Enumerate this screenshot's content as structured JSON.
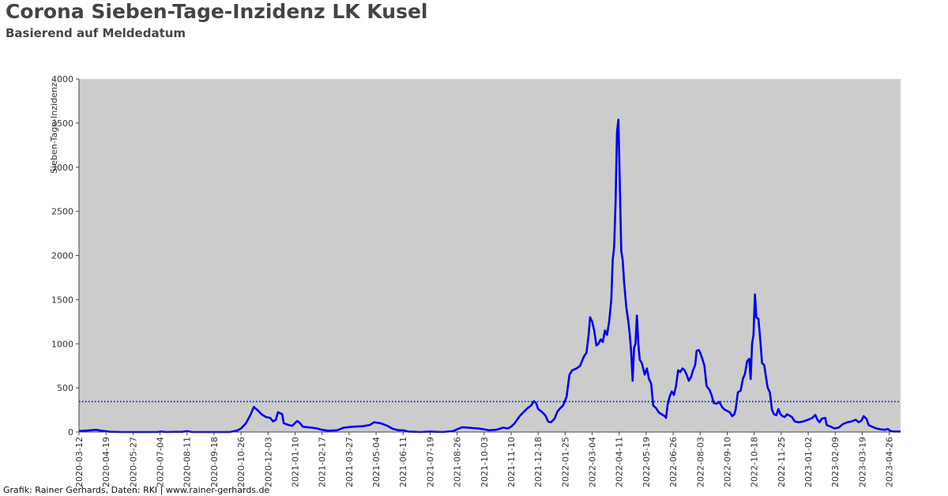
{
  "title": "Corona Sieben-Tage-Inzidenz LK Kusel",
  "subtitle": "Basierend auf Meldedatum",
  "footer": "Grafik: Rainer Gerhards, Daten: RKI | www.rainer-gerhards.de",
  "colors": {
    "plot_background": "#cccccc",
    "series_line": "#0000ee",
    "reference_line": "#0000cc",
    "text": "#444444"
  },
  "chart_data": {
    "type": "line",
    "title": "Corona Sieben-Tage-Inzidenz LK Kusel",
    "subtitle": "Basierend auf Meldedatum",
    "xlabel": "",
    "ylabel": "Sieben-Tage-Inzidenz",
    "ylim": [
      0,
      4000
    ],
    "xlim": [
      "2020-03-12",
      "2023-05-12"
    ],
    "grid": false,
    "y_ticks": [
      0,
      500,
      1000,
      1500,
      2000,
      2500,
      3000,
      3500,
      4000
    ],
    "x_ticks": [
      "2020-03-12",
      "2020-04-19",
      "2020-05-27",
      "2020-07-04",
      "2020-08-11",
      "2020-09-18",
      "2020-10-26",
      "2020-12-03",
      "2021-01-10",
      "2021-02-17",
      "2021-03-27",
      "2021-05-04",
      "2021-06-11",
      "2021-07-19",
      "2021-08-26",
      "2021-10-03",
      "2021-11-10",
      "2021-12-18",
      "2022-01-25",
      "2022-03-04",
      "2022-04-11",
      "2022-05-19",
      "2022-06-26",
      "2022-08-03",
      "2022-09-10",
      "2022-10-18",
      "2022-11-25",
      "2023-01-02",
      "2023-02-09",
      "2023-03-19",
      "2023-04-26"
    ],
    "reference_line": {
      "y": 345,
      "style": "dotted"
    },
    "series": [
      {
        "points": [
          [
            "2020-03-12",
            10
          ],
          [
            "2020-03-20",
            15
          ],
          [
            "2020-03-28",
            20
          ],
          [
            "2020-04-05",
            25
          ],
          [
            "2020-04-12",
            15
          ],
          [
            "2020-04-19",
            8
          ],
          [
            "2020-04-25",
            3
          ],
          [
            "2020-05-10",
            0
          ],
          [
            "2020-06-30",
            0
          ],
          [
            "2020-07-05",
            5
          ],
          [
            "2020-07-12",
            0
          ],
          [
            "2020-08-05",
            3
          ],
          [
            "2020-08-11",
            10
          ],
          [
            "2020-08-18",
            0
          ],
          [
            "2020-10-10",
            0
          ],
          [
            "2020-10-20",
            15
          ],
          [
            "2020-10-26",
            40
          ],
          [
            "2020-11-02",
            100
          ],
          [
            "2020-11-08",
            190
          ],
          [
            "2020-11-13",
            285
          ],
          [
            "2020-11-18",
            250
          ],
          [
            "2020-11-24",
            200
          ],
          [
            "2020-11-30",
            170
          ],
          [
            "2020-12-06",
            160
          ],
          [
            "2020-12-10",
            120
          ],
          [
            "2020-12-14",
            140
          ],
          [
            "2020-12-17",
            225
          ],
          [
            "2020-12-23",
            200
          ],
          [
            "2020-12-25",
            100
          ],
          [
            "2021-01-01",
            80
          ],
          [
            "2021-01-06",
            70
          ],
          [
            "2021-01-13",
            125
          ],
          [
            "2021-01-17",
            100
          ],
          [
            "2021-01-21",
            60
          ],
          [
            "2021-02-02",
            50
          ],
          [
            "2021-02-10",
            40
          ],
          [
            "2021-02-17",
            25
          ],
          [
            "2021-02-25",
            15
          ],
          [
            "2021-03-10",
            20
          ],
          [
            "2021-03-20",
            50
          ],
          [
            "2021-04-01",
            60
          ],
          [
            "2021-04-15",
            65
          ],
          [
            "2021-04-25",
            80
          ],
          [
            "2021-05-01",
            110
          ],
          [
            "2021-05-10",
            100
          ],
          [
            "2021-05-20",
            70
          ],
          [
            "2021-05-28",
            35
          ],
          [
            "2021-06-05",
            20
          ],
          [
            "2021-06-11",
            20
          ],
          [
            "2021-06-18",
            5
          ],
          [
            "2021-07-05",
            0
          ],
          [
            "2021-07-19",
            5
          ],
          [
            "2021-08-05",
            0
          ],
          [
            "2021-08-20",
            10
          ],
          [
            "2021-08-26",
            30
          ],
          [
            "2021-09-02",
            55
          ],
          [
            "2021-09-10",
            50
          ],
          [
            "2021-09-17",
            45
          ],
          [
            "2021-09-25",
            40
          ],
          [
            "2021-10-03",
            30
          ],
          [
            "2021-10-10",
            20
          ],
          [
            "2021-10-20",
            25
          ],
          [
            "2021-10-30",
            50
          ],
          [
            "2021-11-05",
            40
          ],
          [
            "2021-11-10",
            60
          ],
          [
            "2021-11-15",
            100
          ],
          [
            "2021-11-22",
            180
          ],
          [
            "2021-11-28",
            230
          ],
          [
            "2021-12-03",
            270
          ],
          [
            "2021-12-08",
            300
          ],
          [
            "2021-12-12",
            350
          ],
          [
            "2021-12-15",
            330
          ],
          [
            "2021-12-18",
            260
          ],
          [
            "2021-12-23",
            230
          ],
          [
            "2021-12-28",
            190
          ],
          [
            "2022-01-01",
            120
          ],
          [
            "2022-01-05",
            110
          ],
          [
            "2022-01-10",
            150
          ],
          [
            "2022-01-14",
            230
          ],
          [
            "2022-01-18",
            270
          ],
          [
            "2022-01-22",
            300
          ],
          [
            "2022-01-27",
            400
          ],
          [
            "2022-01-31",
            650
          ],
          [
            "2022-02-04",
            700
          ],
          [
            "2022-02-10",
            720
          ],
          [
            "2022-02-15",
            750
          ],
          [
            "2022-02-20",
            850
          ],
          [
            "2022-02-24",
            900
          ],
          [
            "2022-02-27",
            1100
          ],
          [
            "2022-03-01",
            1300
          ],
          [
            "2022-03-04",
            1250
          ],
          [
            "2022-03-07",
            1150
          ],
          [
            "2022-03-10",
            980
          ],
          [
            "2022-03-13",
            1000
          ],
          [
            "2022-03-16",
            1050
          ],
          [
            "2022-03-19",
            1020
          ],
          [
            "2022-03-22",
            1150
          ],
          [
            "2022-03-25",
            1100
          ],
          [
            "2022-03-28",
            1250
          ],
          [
            "2022-03-31",
            1500
          ],
          [
            "2022-04-02",
            1950
          ],
          [
            "2022-04-04",
            2100
          ],
          [
            "2022-04-06",
            2600
          ],
          [
            "2022-04-08",
            3400
          ],
          [
            "2022-04-10",
            3540
          ],
          [
            "2022-04-12",
            2800
          ],
          [
            "2022-04-14",
            2050
          ],
          [
            "2022-04-16",
            1950
          ],
          [
            "2022-04-18",
            1700
          ],
          [
            "2022-04-21",
            1420
          ],
          [
            "2022-04-24",
            1250
          ],
          [
            "2022-04-26",
            1100
          ],
          [
            "2022-04-28",
            900
          ],
          [
            "2022-04-30",
            580
          ],
          [
            "2022-05-02",
            950
          ],
          [
            "2022-05-04",
            1000
          ],
          [
            "2022-05-06",
            1320
          ],
          [
            "2022-05-08",
            1000
          ],
          [
            "2022-05-10",
            820
          ],
          [
            "2022-05-13",
            780
          ],
          [
            "2022-05-17",
            650
          ],
          [
            "2022-05-20",
            720
          ],
          [
            "2022-05-23",
            600
          ],
          [
            "2022-05-26",
            550
          ],
          [
            "2022-05-29",
            300
          ],
          [
            "2022-06-02",
            270
          ],
          [
            "2022-06-06",
            220
          ],
          [
            "2022-06-10",
            200
          ],
          [
            "2022-06-14",
            180
          ],
          [
            "2022-06-16",
            160
          ],
          [
            "2022-06-18",
            300
          ],
          [
            "2022-06-21",
            400
          ],
          [
            "2022-06-24",
            460
          ],
          [
            "2022-06-27",
            420
          ],
          [
            "2022-06-30",
            520
          ],
          [
            "2022-07-03",
            700
          ],
          [
            "2022-07-06",
            680
          ],
          [
            "2022-07-09",
            720
          ],
          [
            "2022-07-12",
            700
          ],
          [
            "2022-07-15",
            650
          ],
          [
            "2022-07-18",
            580
          ],
          [
            "2022-07-21",
            620
          ],
          [
            "2022-07-24",
            700
          ],
          [
            "2022-07-27",
            760
          ],
          [
            "2022-07-29",
            920
          ],
          [
            "2022-08-01",
            930
          ],
          [
            "2022-08-03",
            900
          ],
          [
            "2022-08-06",
            830
          ],
          [
            "2022-08-09",
            750
          ],
          [
            "2022-08-12",
            520
          ],
          [
            "2022-08-16",
            480
          ],
          [
            "2022-08-19",
            420
          ],
          [
            "2022-08-22",
            330
          ],
          [
            "2022-08-26",
            320
          ],
          [
            "2022-08-30",
            340
          ],
          [
            "2022-09-03",
            280
          ],
          [
            "2022-09-07",
            250
          ],
          [
            "2022-09-10",
            240
          ],
          [
            "2022-09-14",
            220
          ],
          [
            "2022-09-17",
            180
          ],
          [
            "2022-09-20",
            200
          ],
          [
            "2022-09-22",
            260
          ],
          [
            "2022-09-25",
            450
          ],
          [
            "2022-09-29",
            470
          ],
          [
            "2022-10-02",
            600
          ],
          [
            "2022-10-05",
            660
          ],
          [
            "2022-10-08",
            800
          ],
          [
            "2022-10-11",
            830
          ],
          [
            "2022-10-13",
            600
          ],
          [
            "2022-10-15",
            1000
          ],
          [
            "2022-10-17",
            1100
          ],
          [
            "2022-10-19",
            1560
          ],
          [
            "2022-10-21",
            1300
          ],
          [
            "2022-10-24",
            1280
          ],
          [
            "2022-10-27",
            1000
          ],
          [
            "2022-10-29",
            780
          ],
          [
            "2022-11-01",
            760
          ],
          [
            "2022-11-04",
            600
          ],
          [
            "2022-11-06",
            500
          ],
          [
            "2022-11-09",
            450
          ],
          [
            "2022-11-12",
            250
          ],
          [
            "2022-11-15",
            200
          ],
          [
            "2022-11-18",
            190
          ],
          [
            "2022-11-21",
            260
          ],
          [
            "2022-11-24",
            200
          ],
          [
            "2022-11-27",
            180
          ],
          [
            "2022-11-30",
            170
          ],
          [
            "2022-12-03",
            200
          ],
          [
            "2022-12-06",
            190
          ],
          [
            "2022-12-10",
            170
          ],
          [
            "2022-12-14",
            120
          ],
          [
            "2022-12-20",
            110
          ],
          [
            "2022-12-26",
            120
          ],
          [
            "2023-01-02",
            140
          ],
          [
            "2023-01-08",
            160
          ],
          [
            "2023-01-12",
            195
          ],
          [
            "2023-01-15",
            140
          ],
          [
            "2023-01-18",
            110
          ],
          [
            "2023-01-21",
            150
          ],
          [
            "2023-01-26",
            160
          ],
          [
            "2023-01-28",
            80
          ],
          [
            "2023-02-03",
            60
          ],
          [
            "2023-02-08",
            40
          ],
          [
            "2023-02-14",
            50
          ],
          [
            "2023-02-20",
            90
          ],
          [
            "2023-02-26",
            110
          ],
          [
            "2023-03-04",
            120
          ],
          [
            "2023-03-10",
            140
          ],
          [
            "2023-03-14",
            110
          ],
          [
            "2023-03-18",
            130
          ],
          [
            "2023-03-21",
            180
          ],
          [
            "2023-03-25",
            150
          ],
          [
            "2023-03-28",
            80
          ],
          [
            "2023-04-02",
            60
          ],
          [
            "2023-04-08",
            40
          ],
          [
            "2023-04-14",
            30
          ],
          [
            "2023-04-20",
            25
          ],
          [
            "2023-04-24",
            35
          ],
          [
            "2023-04-28",
            10
          ],
          [
            "2023-05-03",
            5
          ],
          [
            "2023-05-12",
            5
          ]
        ]
      }
    ]
  }
}
